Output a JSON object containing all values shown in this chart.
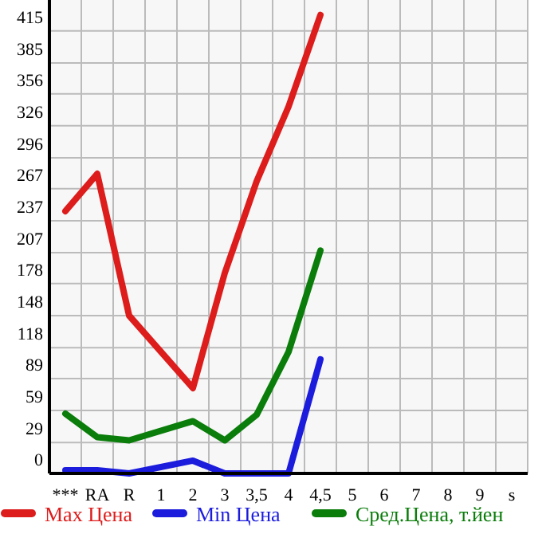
{
  "chart_data": {
    "type": "line",
    "categories": [
      "***",
      "RA",
      "R",
      "1",
      "2",
      "3",
      "3,5",
      "4",
      "4,5",
      "5",
      "6",
      "7",
      "8",
      "9",
      "s"
    ],
    "series": [
      {
        "name": "Max Цена",
        "color": "#dd1c1c",
        "values": [
          246,
          281,
          148,
          null,
          80,
          188,
          274,
          344,
          430,
          null,
          null,
          null,
          null,
          null,
          null
        ]
      },
      {
        "name": "Min Цена",
        "color": "#1c1cdd",
        "values": [
          3,
          3,
          0,
          null,
          12,
          0,
          0,
          0,
          107,
          null,
          null,
          null,
          null,
          null,
          null
        ]
      },
      {
        "name": "Сред.Цена, т.йен",
        "color": "#0a7d0a",
        "values": [
          56,
          34,
          31,
          null,
          49,
          31,
          55,
          114,
          209,
          null,
          null,
          null,
          null,
          null,
          null
        ]
      }
    ],
    "ylim": [
      0,
      444
    ],
    "yticks": [
      0,
      29,
      59,
      89,
      118,
      148,
      178,
      207,
      237,
      267,
      296,
      326,
      356,
      385,
      415
    ],
    "grid": true,
    "legend": "bottom",
    "marker": "none",
    "line_style": "solid"
  }
}
